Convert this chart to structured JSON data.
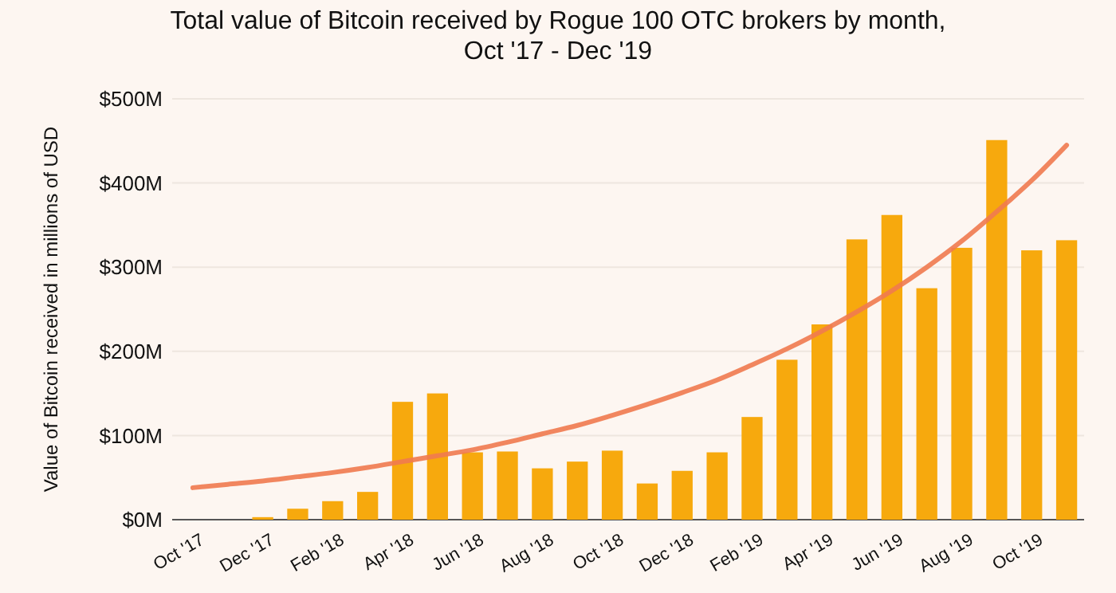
{
  "chart_data": {
    "type": "bar",
    "title": "Total value of Bitcoin received by Rogue 100 OTC brokers by month, Oct '17 - Dec '19",
    "ylabel": "Value of Bitcoin received in millions of USD",
    "categories": [
      "Oct '17",
      null,
      "Dec '17",
      null,
      "Feb '18",
      null,
      "Apr '18",
      null,
      "Jun '18",
      null,
      "Aug '18",
      null,
      "Oct '18",
      null,
      "Dec '18",
      null,
      "Feb '19",
      null,
      "Apr '19",
      null,
      "Jun '19",
      null,
      "Aug '19",
      null,
      "Oct '19",
      null
    ],
    "series": [
      {
        "color": "#f7a90d",
        "values": [
          0,
          0,
          3,
          13,
          22,
          33,
          140,
          150,
          80,
          81,
          61,
          69,
          82,
          43,
          58,
          80,
          122,
          190,
          232,
          333,
          362,
          275,
          323,
          451,
          320,
          332
        ]
      },
      {
        "type": "line",
        "color": "#f07a4f",
        "values": [
          38,
          42,
          46,
          51,
          56,
          62,
          69,
          76,
          83,
          92,
          102,
          112,
          124,
          137,
          151,
          166,
          184,
          203,
          224,
          247,
          272,
          300,
          331,
          366,
          403,
          445
        ]
      }
    ],
    "ylim": [
      0,
      500
    ],
    "yticks": [
      {
        "value": 0,
        "label": "$0M"
      },
      {
        "value": 100,
        "label": "$100M"
      },
      {
        "value": 200,
        "label": "$200M"
      },
      {
        "value": 300,
        "label": "$300M"
      },
      {
        "value": 400,
        "label": "$400M"
      },
      {
        "value": 500,
        "label": "$500M"
      }
    ],
    "grid": "y"
  }
}
